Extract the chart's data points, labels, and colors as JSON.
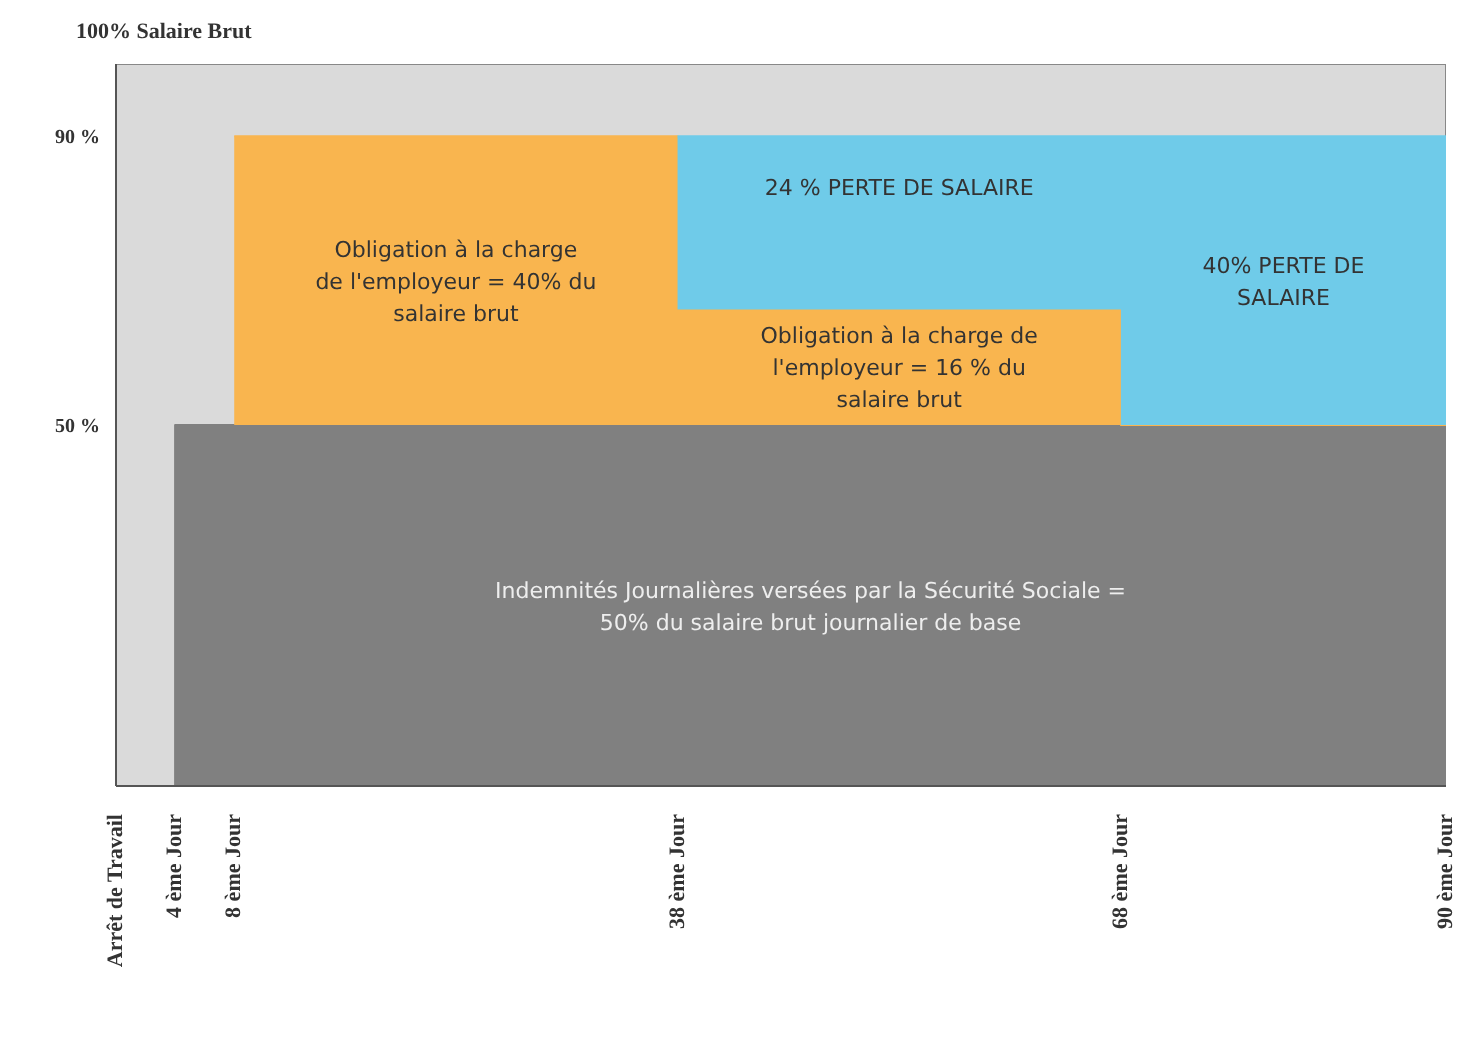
{
  "chart_data": {
    "type": "area",
    "stacked": true,
    "ylabel": "100% Salaire Brut",
    "x": [
      0,
      4,
      4,
      8,
      8,
      38,
      38,
      68,
      68,
      90
    ],
    "xlim": [
      0,
      90
    ],
    "xticks": [
      {
        "value": 0,
        "label": "Arrêt de Travail"
      },
      {
        "value": 4,
        "label": "4 ème Jour"
      },
      {
        "value": 8,
        "label": "8 ème Jour"
      },
      {
        "value": 38,
        "label": "38 ème Jour"
      },
      {
        "value": 68,
        "label": "68 ème Jour"
      },
      {
        "value": 90,
        "label": "90 ème Jour"
      }
    ],
    "ylim": [
      0,
      100
    ],
    "yticks": [
      {
        "value": 50,
        "label": "50 %"
      },
      {
        "value": 90,
        "label": "90 %"
      }
    ],
    "series": [
      {
        "color": "#808080",
        "values": [
          0,
          0,
          50,
          50,
          50,
          50,
          50,
          50,
          50,
          50
        ]
      },
      {
        "color": "#f9b54f",
        "values": [
          null,
          null,
          null,
          null,
          40,
          40,
          16,
          16,
          0,
          0
        ]
      },
      {
        "color": "#6fcbe9",
        "values": [
          null,
          null,
          null,
          null,
          null,
          null,
          24,
          24,
          40,
          40
        ]
      }
    ],
    "bands": [
      {
        "axis": "y",
        "from": 0,
        "to": 100,
        "color": "#dadada"
      }
    ],
    "annotations": [
      "Obligation à la charge de l'employeur = 40% du salaire brut",
      "24 % PERTE DE SALAIRE",
      "Obligation à la charge de l'employeur = 16 % du salaire brut",
      "40% PERTE DE SALAIRE",
      "Indemnités Journalières versées par la Sécurité Sociale = 50% du salaire brut journalier de base"
    ]
  }
}
